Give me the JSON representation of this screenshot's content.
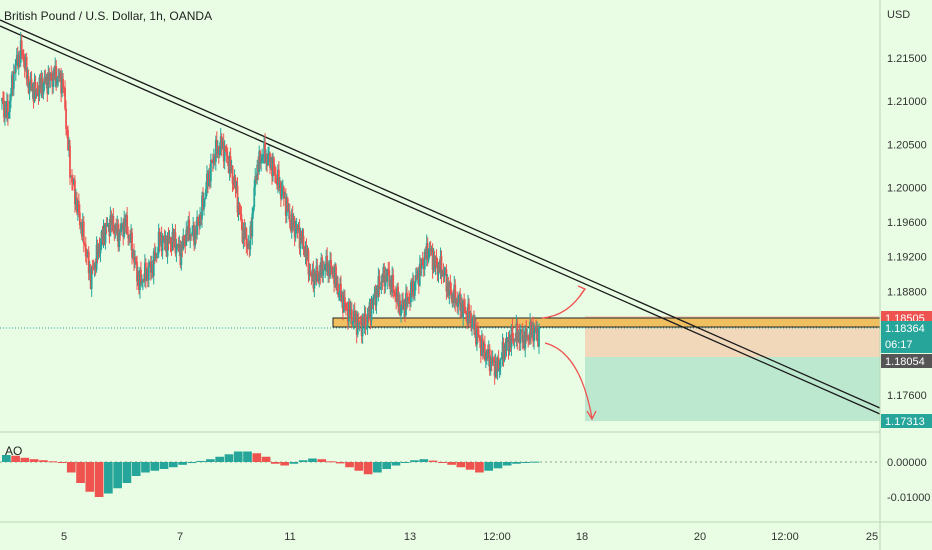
{
  "chart_data": [
    {
      "type": "candlestick",
      "title": "British Pound / U.S. Dollar, 1h, OANDA",
      "currency": "USD",
      "x_tick_labels": [
        "5",
        "7",
        "11",
        "13",
        "12:00",
        "18",
        "20",
        "12:00",
        "25"
      ],
      "y_tick_labels": [
        "1.21500",
        "1.21000",
        "1.20500",
        "1.20000",
        "1.19600",
        "1.19200",
        "1.18800",
        "1.17600"
      ],
      "ylim": [
        1.1708,
        1.223
      ],
      "colors": {
        "up": "#26a69a",
        "down": "#ef5350",
        "trendline": "#1b1b1b",
        "zone": "#f0c060"
      },
      "key_prices": [
        {
          "label": "1.18505",
          "value": 1.18505,
          "color": "#ef5350",
          "role": "stop-loss"
        },
        {
          "label": "1.18364",
          "value": 1.18364,
          "color": "#26a69a",
          "role": "last-price",
          "countdown": "06:17"
        },
        {
          "label": "1.18054",
          "value": 1.18054,
          "color": "#555555",
          "role": "entry"
        },
        {
          "label": "1.17313",
          "value": 1.17313,
          "color": "#26a69a",
          "role": "target"
        }
      ],
      "annotations": [
        "descending trendline",
        "horizontal support zone",
        "short position box"
      ],
      "price_path": [
        1.21,
        1.2085,
        1.214,
        1.216,
        1.212,
        1.211,
        1.212,
        1.2125,
        1.213,
        1.212,
        1.202,
        1.198,
        1.194,
        1.1895,
        1.1925,
        1.195,
        1.196,
        1.1945,
        1.196,
        1.193,
        1.189,
        1.19,
        1.191,
        1.194,
        1.1935,
        1.194,
        1.1925,
        1.195,
        1.1945,
        1.197,
        1.201,
        1.204,
        1.205,
        1.203,
        1.2,
        1.195,
        1.193,
        1.202,
        1.204,
        1.203,
        1.201,
        1.199,
        1.196,
        1.195,
        1.193,
        1.1895,
        1.19,
        1.191,
        1.1905,
        1.188,
        1.186,
        1.185,
        1.184,
        1.1845,
        1.187,
        1.189,
        1.19,
        1.188,
        1.186,
        1.187,
        1.189,
        1.191,
        1.193,
        1.191,
        1.1905,
        1.188,
        1.187,
        1.186,
        1.185,
        1.183,
        1.181,
        1.18,
        1.179,
        1.1815,
        1.1825,
        1.183,
        1.1825,
        1.1835,
        1.183
      ]
    },
    {
      "type": "histogram",
      "title": "AO",
      "y_tick_labels": [
        "0.00000",
        "-0.01000"
      ],
      "ylim": [
        -0.0125,
        0.0045
      ],
      "values": [
        0.002,
        0.0018,
        0.0012,
        0.0008,
        0.0005,
        0.0002,
        -0.0002,
        -0.003,
        -0.006,
        -0.0085,
        -0.01,
        -0.009,
        -0.0075,
        -0.006,
        -0.004,
        -0.003,
        -0.0025,
        -0.002,
        -0.0015,
        -0.0008,
        -0.0003,
        0.0003,
        0.0008,
        0.0015,
        0.0022,
        0.003,
        0.003,
        0.0025,
        0.0015,
        -0.0005,
        -0.001,
        -0.0005,
        0.0005,
        0.001,
        0.0008,
        0.0002,
        -0.0004,
        -0.0015,
        -0.0025,
        -0.0035,
        -0.003,
        -0.002,
        -0.001,
        -0.0002,
        0.0005,
        0.0008,
        0.0004,
        0.0,
        -0.0008,
        -0.0015,
        -0.0022,
        -0.003,
        -0.0025,
        -0.0018,
        -0.001,
        -0.0005,
        -0.0002,
        0.0001
      ]
    }
  ]
}
